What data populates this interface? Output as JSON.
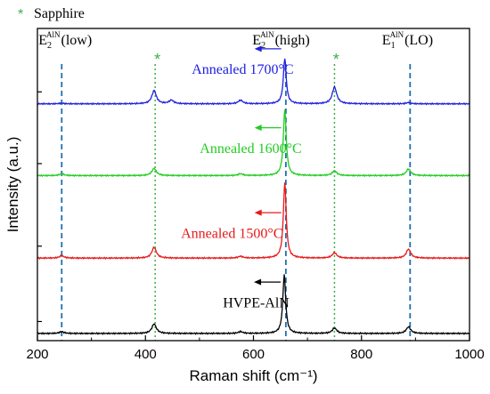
{
  "chart_data": {
    "type": "line",
    "title": "",
    "xlabel": "Raman shift (cm⁻¹)",
    "ylabel": "Intensity (a.u.)",
    "xlim": [
      200,
      1000
    ],
    "x_ticks": [
      "200",
      "400",
      "600",
      "800",
      "1000"
    ],
    "y_tick_labels": "none",
    "grid": false,
    "legend": {
      "marker": "*",
      "label": "Sapphire",
      "placement": "top-left above plot",
      "color": "#3fae48"
    },
    "series": [
      {
        "name": "HVPE-AlN",
        "color": "#000000",
        "offset": 0,
        "peaks": [
          {
            "x": 245,
            "height": 0.15
          },
          {
            "x": 416,
            "height": 0.8
          },
          {
            "x": 576,
            "height": 0.15
          },
          {
            "x": 657,
            "height": 4.9
          },
          {
            "x": 750,
            "height": 0.45
          },
          {
            "x": 887,
            "height": 0.55
          }
        ],
        "arrow_x": 657,
        "label_anchor_x": 605,
        "label_level": 2.2
      },
      {
        "name": "Annealed 1500°C",
        "color": "#e81818",
        "offset": 6.3,
        "peaks": [
          {
            "x": 245,
            "height": 0.2
          },
          {
            "x": 416,
            "height": 0.9
          },
          {
            "x": 576,
            "height": 0.15
          },
          {
            "x": 658,
            "height": 6.3
          },
          {
            "x": 750,
            "height": 0.45
          },
          {
            "x": 887,
            "height": 0.75
          }
        ],
        "arrow_x": 658,
        "label_anchor_x": 560,
        "label_level": 1.7
      },
      {
        "name": "Annealed 1600°C",
        "color": "#22cc22",
        "offset": 13.2,
        "peaks": [
          {
            "x": 245,
            "height": 0.15
          },
          {
            "x": 416,
            "height": 0.6
          },
          {
            "x": 576,
            "height": 0.15
          },
          {
            "x": 658,
            "height": 5.5
          },
          {
            "x": 750,
            "height": 0.4
          },
          {
            "x": 887,
            "height": 0.55
          }
        ],
        "arrow_x": 658,
        "label_anchor_x": 595,
        "label_level": 1.9
      },
      {
        "name": "Annealed 1700°C",
        "color": "#2020e0",
        "offset": 19.2,
        "peaks": [
          {
            "x": 245,
            "height": 0.05
          },
          {
            "x": 416,
            "height": 1.1
          },
          {
            "x": 448,
            "height": 0.3
          },
          {
            "x": 576,
            "height": 0.3
          },
          {
            "x": 658,
            "height": 3.8
          },
          {
            "x": 750,
            "height": 1.4
          },
          {
            "x": 887,
            "height": 0.1
          }
        ],
        "arrow_x": 658,
        "label_anchor_x": 580,
        "label_level": 2.5
      }
    ],
    "ylim": [
      -0.6,
      25.5
    ],
    "reference_lines": [
      {
        "x": 245,
        "style": "dashed",
        "color": "#1e6fb0"
      },
      {
        "x": 418,
        "style": "dotted",
        "color": "#3fae48"
      },
      {
        "x": 660,
        "style": "dashed",
        "color": "#1e6fb0"
      },
      {
        "x": 750,
        "style": "dotted",
        "color": "#3fae48"
      },
      {
        "x": 890,
        "style": "dashed",
        "color": "#1e6fb0"
      }
    ],
    "annotations": [
      {
        "base": "E",
        "sub": "2",
        "sup": "AlN",
        "tail": "(low)",
        "x": 202
      },
      {
        "base": "E",
        "sub": "2",
        "sup": "AlN",
        "tail": "(high)",
        "x": 598
      },
      {
        "base": "E",
        "sub": "1",
        "sup": "AlN",
        "tail": "(LO)",
        "x": 838
      }
    ],
    "sapphire_markers": [
      {
        "text": "*",
        "x": 422
      },
      {
        "text": "*",
        "x": 753
      }
    ]
  }
}
